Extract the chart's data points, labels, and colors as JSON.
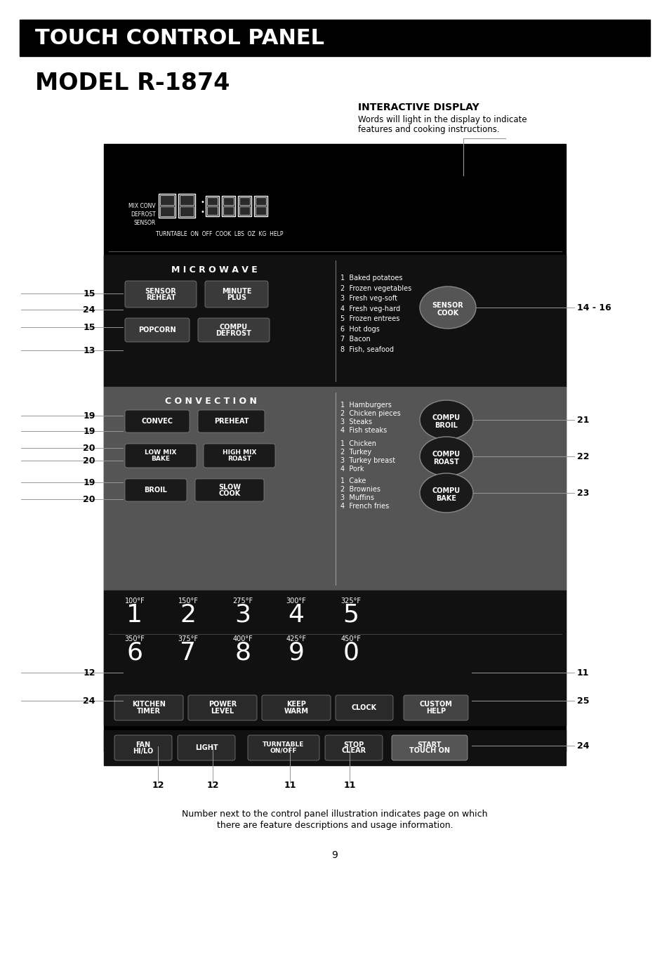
{
  "title_bar_text": "TOUCH CONTROL PANEL",
  "model_text": "MODEL R-1874",
  "interactive_display_title": "INTERACTIVE DISPLAY",
  "interactive_display_line1": "Words will light in the display to indicate",
  "interactive_display_line2": "features and cooking instructions.",
  "page_number": "9",
  "footer_line1": "Number next to the control panel illustration indicates page on which",
  "footer_line2": "there are feature descriptions and usage information.",
  "bg_color": "#ffffff",
  "title_bar_bg": "#000000",
  "title_bar_fg": "#ffffff",
  "panel_bg": "#000000",
  "panel_gray": "#555555",
  "button_bg": "#333333",
  "button_fg": "#ffffff"
}
